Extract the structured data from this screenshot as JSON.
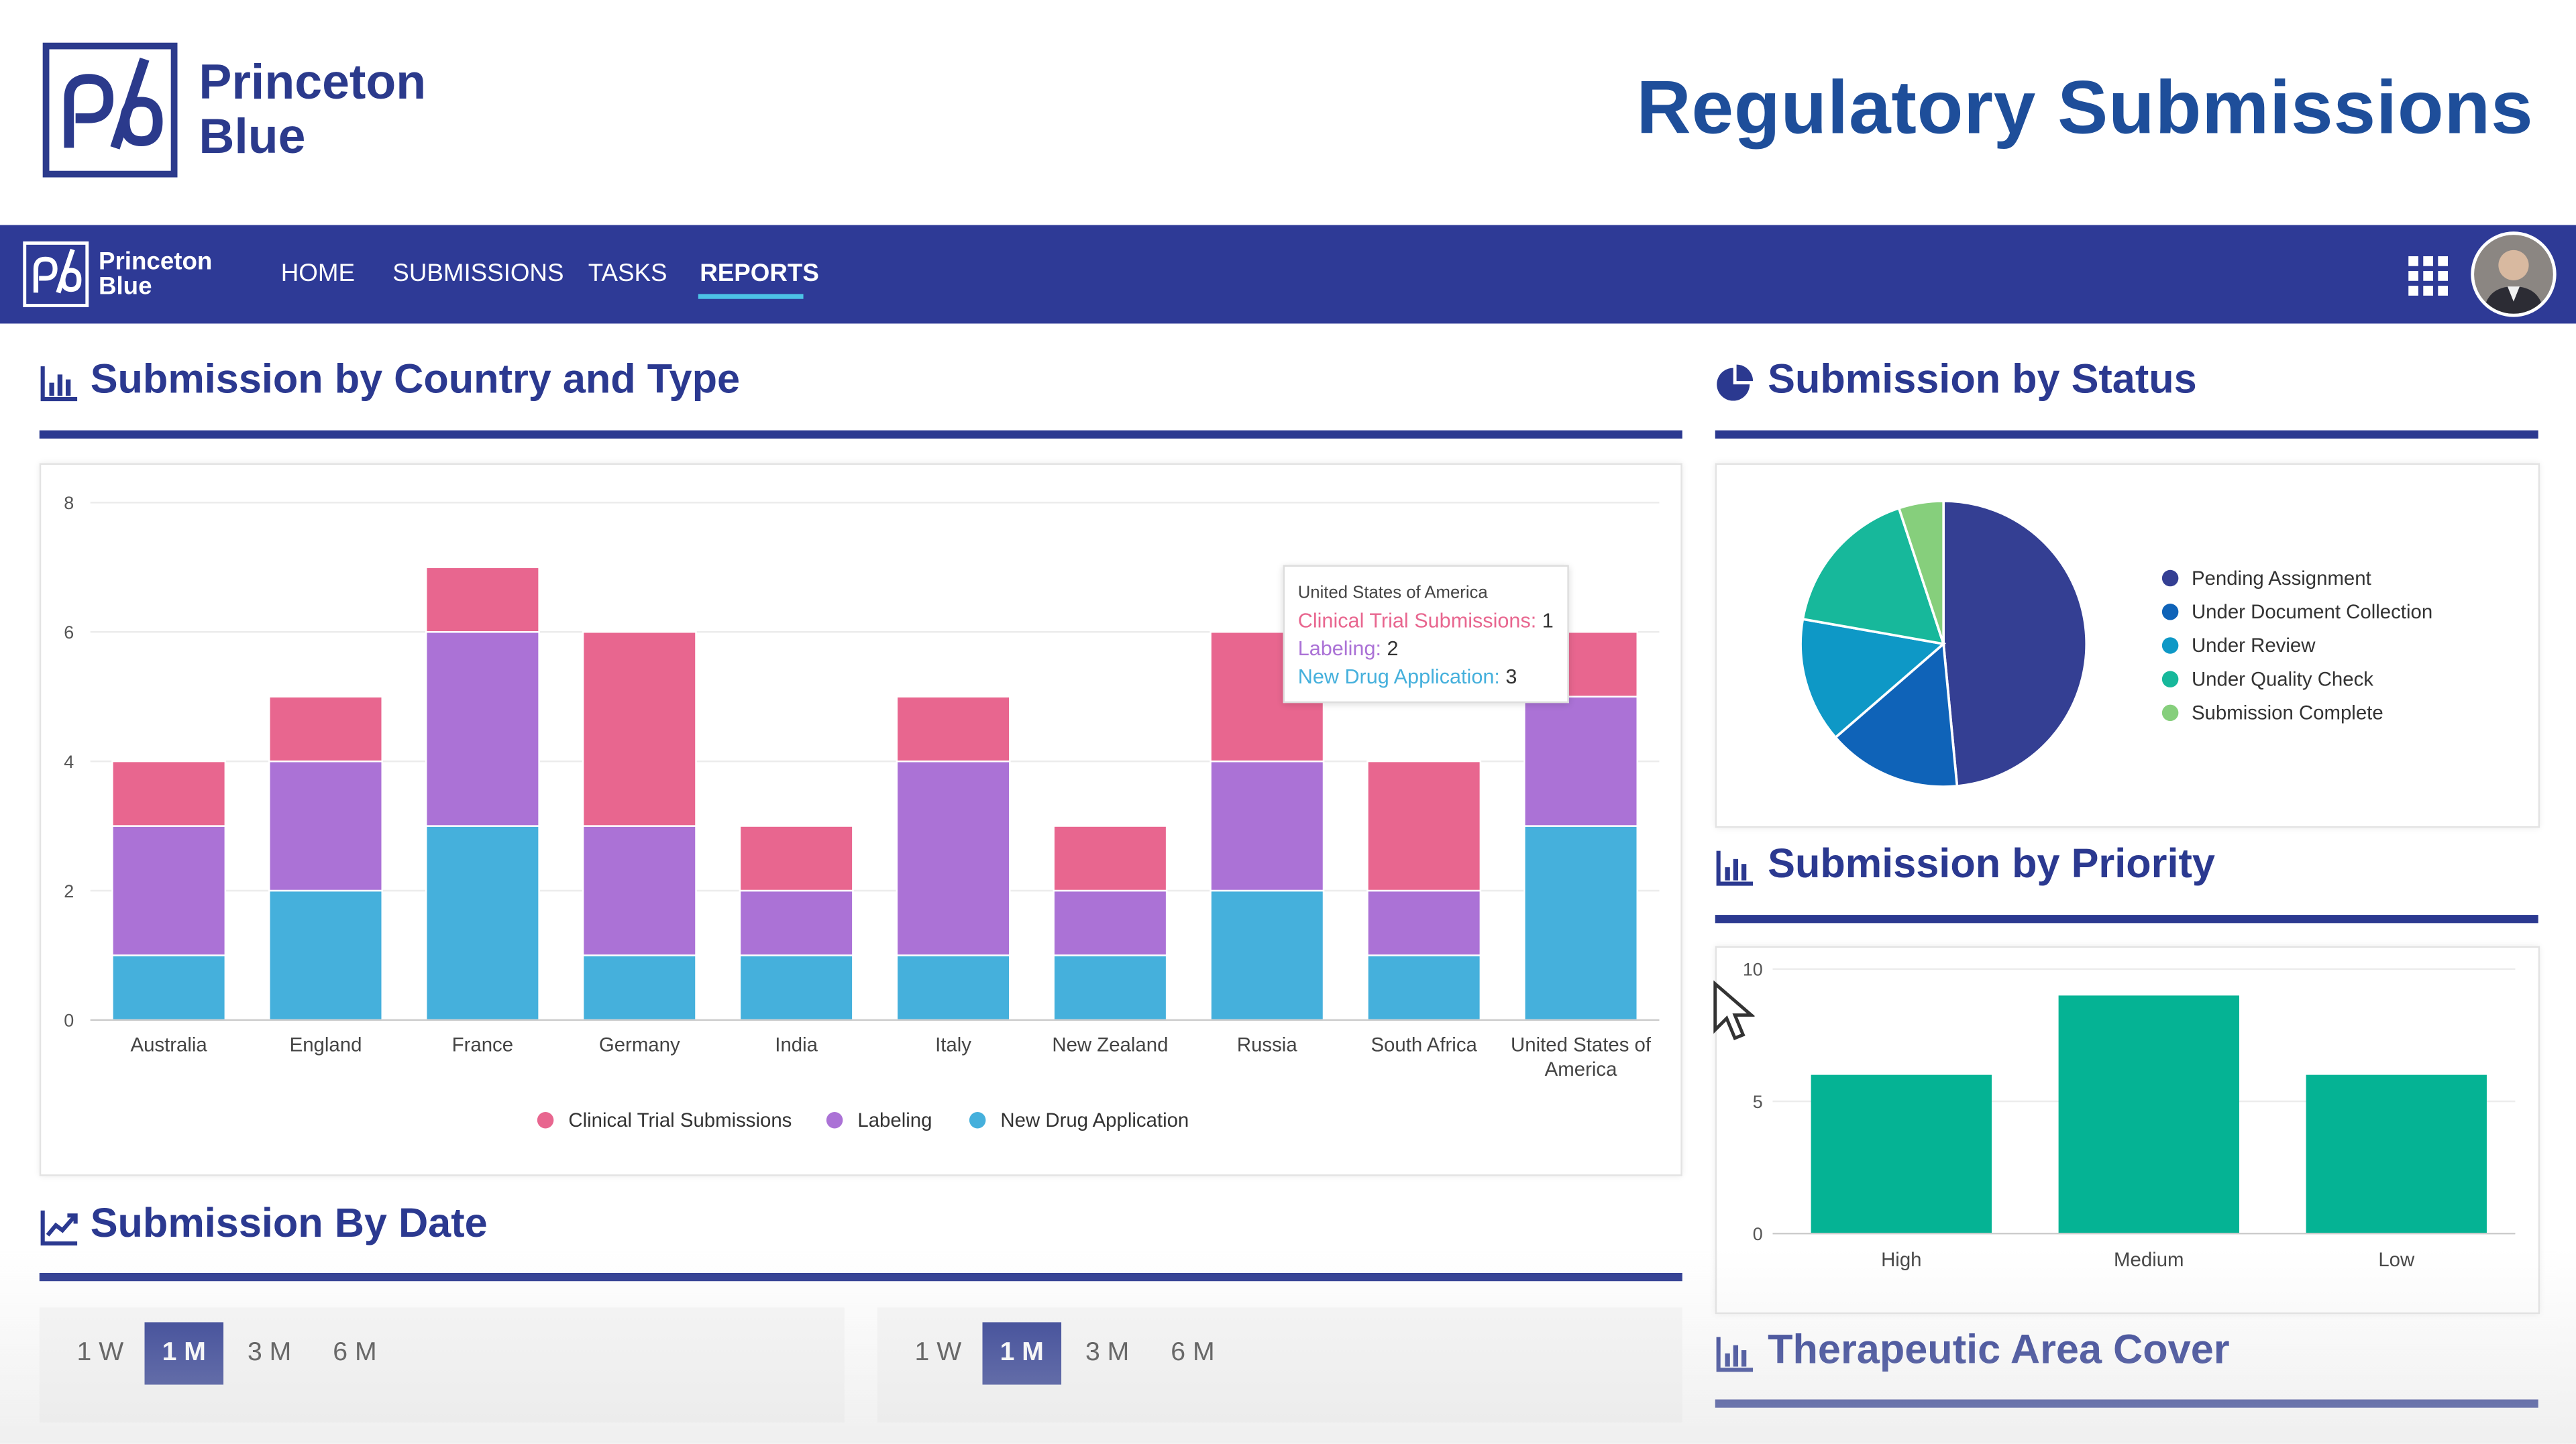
{
  "header": {
    "brand_line1": "Princeton",
    "brand_line2": "Blue",
    "page_title": "Regulatory Submissions"
  },
  "navbar": {
    "brand_line1": "Princeton",
    "brand_line2": "Blue",
    "items": [
      {
        "label": "HOME"
      },
      {
        "label": "SUBMISSIONS"
      },
      {
        "label": "TASKS"
      },
      {
        "label": "REPORTS",
        "active": true
      }
    ]
  },
  "sections": {
    "country_type": "Submission by Country and Type",
    "status": "Submission by Status",
    "priority": "Submission by Priority",
    "by_date": "Submission By Date",
    "therapeutic": "Therapeutic Area Cover"
  },
  "tooltip": {
    "title": "United States of America",
    "rows": [
      {
        "label": "Clinical Trial Submissions:",
        "value": "1"
      },
      {
        "label": "Labeling:",
        "value": "2"
      },
      {
        "label": "New Drug Application:",
        "value": "3"
      }
    ]
  },
  "date_ranges": {
    "left": [
      "1 W",
      "1 M",
      "3 M",
      "6 M"
    ],
    "right": [
      "1 W",
      "1 M",
      "3 M",
      "6 M"
    ],
    "selected": "1 M"
  },
  "colors": {
    "clinical": "#e8668f",
    "labeling": "#ab72d6",
    "nda": "#45b0dc",
    "priority_bar": "#05b394",
    "navbar": "#2e3a96",
    "accent": "#2b3990"
  },
  "icons": {
    "bar_chart": "bar-chart-icon",
    "pie_chart": "pie-chart-icon",
    "line_chart": "line-chart-icon",
    "apps": "apps-grid-icon"
  },
  "chart_data": [
    {
      "type": "bar",
      "stacked": true,
      "categories": [
        "Australia",
        "England",
        "France",
        "Germany",
        "India",
        "Italy",
        "New Zealand",
        "Russia",
        "South Africa",
        "United States of America"
      ],
      "series": [
        {
          "name": "New Drug Application",
          "values": [
            1,
            2,
            3,
            1,
            1,
            1,
            1,
            2,
            1,
            3
          ]
        },
        {
          "name": "Labeling",
          "values": [
            2,
            2,
            3,
            2,
            1,
            3,
            1,
            2,
            1,
            2
          ]
        },
        {
          "name": "Clinical Trial Submissions",
          "values": [
            1,
            1,
            1,
            3,
            1,
            1,
            1,
            2,
            2,
            1
          ]
        }
      ],
      "ylim": [
        0,
        8
      ],
      "yticks": [
        0,
        2,
        4,
        6,
        8
      ],
      "legend": [
        "Clinical Trial Submissions",
        "Labeling",
        "New Drug Application"
      ],
      "legend_position": "bottom",
      "grid": true
    },
    {
      "type": "pie",
      "labels": [
        "Pending Assignment",
        "Under Document Collection",
        "Under Review",
        "Under Quality Check",
        "Submission Complete"
      ],
      "values": [
        48,
        15,
        14,
        17,
        5
      ],
      "colors": [
        "#343f93",
        "#0f63b8",
        "#0e98c6",
        "#17b89b",
        "#86cf7c"
      ],
      "legend_position": "right"
    },
    {
      "type": "bar",
      "categories": [
        "High",
        "Medium",
        "Low"
      ],
      "values": [
        6,
        9,
        6
      ],
      "ylim": [
        0,
        10
      ],
      "yticks": [
        0,
        5,
        10
      ],
      "grid": true
    }
  ]
}
